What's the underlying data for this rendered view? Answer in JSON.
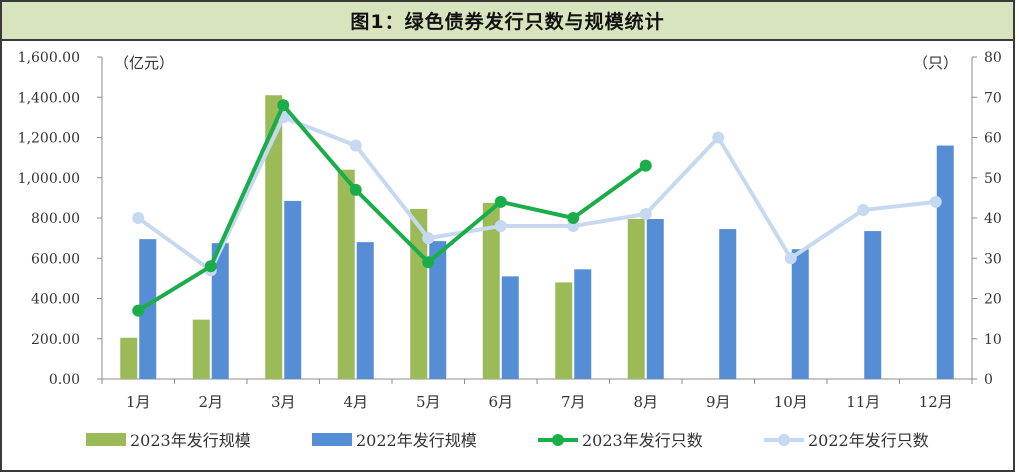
{
  "title": "图1：绿色债券发行只数与规模统计",
  "chart_data": {
    "type": "bar",
    "categories": [
      "1月",
      "2月",
      "3月",
      "4月",
      "5月",
      "6月",
      "7月",
      "8月",
      "9月",
      "10月",
      "11月",
      "12月"
    ],
    "y_left": {
      "unit_label": "（亿元）",
      "ylim": [
        0,
        1600
      ],
      "ticks": [
        "0.00",
        "200.00",
        "400.00",
        "600.00",
        "800.00",
        "1,000.00",
        "1,200.00",
        "1,400.00",
        "1,600.00"
      ]
    },
    "y_right": {
      "unit_label": "（只）",
      "ylim": [
        0,
        80
      ],
      "ticks": [
        "0",
        "10",
        "20",
        "30",
        "40",
        "50",
        "60",
        "70",
        "80"
      ]
    },
    "grid": false,
    "legend_position": "bottom",
    "series": [
      {
        "name": "2023年发行规模",
        "kind": "bar",
        "axis": "left",
        "color": "#9bbb59",
        "values": [
          205,
          295,
          1410,
          1040,
          845,
          875,
          480,
          795,
          null,
          null,
          null,
          null
        ]
      },
      {
        "name": "2022年发行规模",
        "kind": "bar",
        "axis": "left",
        "color": "#558ed5",
        "values": [
          695,
          675,
          885,
          680,
          685,
          510,
          545,
          795,
          745,
          645,
          735,
          1160
        ]
      },
      {
        "name": "2023年发行只数",
        "kind": "line",
        "axis": "right",
        "color": "#1aad4a",
        "values": [
          17,
          28,
          68,
          47,
          29,
          44,
          40,
          53,
          null,
          null,
          null,
          null
        ]
      },
      {
        "name": "2022年发行只数",
        "kind": "line",
        "axis": "right",
        "color": "#c6d9f1",
        "values": [
          40,
          27,
          65,
          58,
          35,
          38,
          38,
          41,
          60,
          30,
          42,
          44
        ]
      }
    ]
  }
}
